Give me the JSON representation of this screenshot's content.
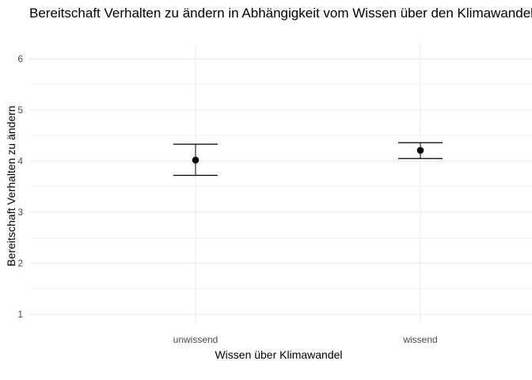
{
  "chart_data": {
    "type": "scatter",
    "title": "Bereitschaft Verhalten zu ändern in Abhängigkeit vom Wissen über den Klimawandel",
    "xlabel": "Wissen über Klimawandel",
    "ylabel": "Bereitschaft Verhalten zu ändern",
    "categories": [
      "unwissend",
      "wissend"
    ],
    "points": [
      {
        "category": "unwissend",
        "mean": 4.02,
        "lower": 3.72,
        "upper": 4.33
      },
      {
        "category": "wissend",
        "mean": 4.21,
        "lower": 4.05,
        "upper": 4.36
      }
    ],
    "yticks": [
      1,
      2,
      3,
      4,
      5,
      6
    ],
    "ylim": [
      0.8,
      6.3
    ],
    "grid": true,
    "colors": {
      "point": "#000000",
      "grid": "#ebebeb",
      "tick_text": "#4d4d4d"
    }
  }
}
